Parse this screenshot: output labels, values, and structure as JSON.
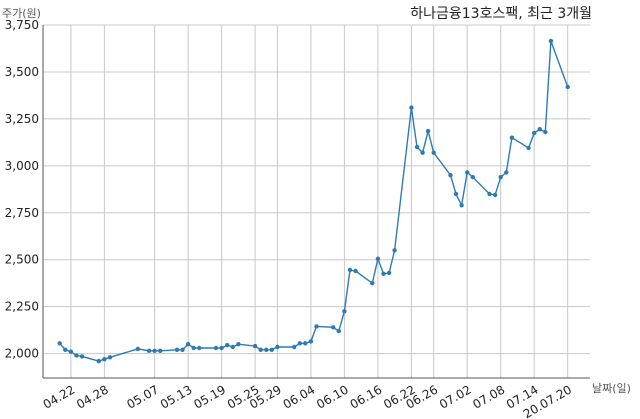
{
  "chart_data": {
    "type": "line",
    "title": "하나금융13호스팩, 최근 3개월",
    "ylabel": "주가(원)",
    "xlabel": "날짜(일)",
    "ylim": [
      1870,
      3750
    ],
    "yticks": [
      2000,
      2250,
      2500,
      2750,
      3000,
      3250,
      3500,
      3750
    ],
    "ytick_labels": [
      "2,000",
      "2,250",
      "2,500",
      "2,750",
      "3,000",
      "3,250",
      "3,500",
      "3,750"
    ],
    "xticks": [
      {
        "label": "04.22",
        "date": "2020-04-22"
      },
      {
        "label": "04.28",
        "date": "2020-04-28"
      },
      {
        "label": "05.07",
        "date": "2020-05-07"
      },
      {
        "label": "05.13",
        "date": "2020-05-13"
      },
      {
        "label": "05.19",
        "date": "2020-05-19"
      },
      {
        "label": "05.25",
        "date": "2020-05-25"
      },
      {
        "label": "05.29",
        "date": "2020-05-29"
      },
      {
        "label": "06.04",
        "date": "2020-06-04"
      },
      {
        "label": "06.10",
        "date": "2020-06-10"
      },
      {
        "label": "06.16",
        "date": "2020-06-16"
      },
      {
        "label": "06.22",
        "date": "2020-06-22"
      },
      {
        "label": "06.26",
        "date": "2020-06-26"
      },
      {
        "label": "07.02",
        "date": "2020-07-02"
      },
      {
        "label": "07.08",
        "date": "2020-07-08"
      },
      {
        "label": "07.14",
        "date": "2020-07-14"
      },
      {
        "label": "20.07.20",
        "date": "2020-07-20"
      }
    ],
    "grid": true,
    "line_color": "#2e7bb4",
    "series": [
      {
        "dates": [
          "2020-04-20",
          "2020-04-21",
          "2020-04-22",
          "2020-04-23",
          "2020-04-24",
          "2020-04-27",
          "2020-04-28",
          "2020-04-29",
          "2020-05-04",
          "2020-05-06",
          "2020-05-07",
          "2020-05-08",
          "2020-05-11",
          "2020-05-12",
          "2020-05-13",
          "2020-05-14",
          "2020-05-15",
          "2020-05-18",
          "2020-05-19",
          "2020-05-20",
          "2020-05-21",
          "2020-05-22",
          "2020-05-25",
          "2020-05-26",
          "2020-05-27",
          "2020-05-28",
          "2020-05-29",
          "2020-06-01",
          "2020-06-02",
          "2020-06-03",
          "2020-06-04",
          "2020-06-05",
          "2020-06-08",
          "2020-06-09",
          "2020-06-10",
          "2020-06-11",
          "2020-06-12",
          "2020-06-15",
          "2020-06-16",
          "2020-06-17",
          "2020-06-18",
          "2020-06-19",
          "2020-06-22",
          "2020-06-23",
          "2020-06-24",
          "2020-06-25",
          "2020-06-26",
          "2020-06-29",
          "2020-06-30",
          "2020-07-01",
          "2020-07-02",
          "2020-07-03",
          "2020-07-06",
          "2020-07-07",
          "2020-07-08",
          "2020-07-09",
          "2020-07-10",
          "2020-07-13",
          "2020-07-14",
          "2020-07-15",
          "2020-07-16",
          "2020-07-17",
          "2020-07-20"
        ],
        "values": [
          2055,
          2020,
          2010,
          1990,
          1985,
          1960,
          1970,
          1980,
          2025,
          2015,
          2015,
          2015,
          2020,
          2020,
          2050,
          2030,
          2030,
          2030,
          2030,
          2045,
          2035,
          2050,
          2040,
          2020,
          2020,
          2020,
          2035,
          2035,
          2055,
          2055,
          2065,
          2145,
          2140,
          2120,
          2225,
          2445,
          2440,
          2375,
          2505,
          2425,
          2430,
          2550,
          3310,
          3100,
          3070,
          3185,
          3070,
          2950,
          2850,
          2790,
          2965,
          2940,
          2850,
          2845,
          2940,
          2965,
          3150,
          3095,
          3175,
          3195,
          3180,
          3665,
          3420
        ]
      }
    ]
  }
}
